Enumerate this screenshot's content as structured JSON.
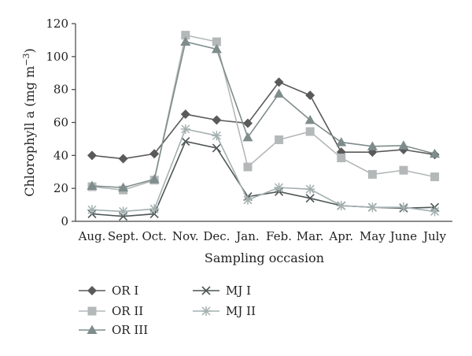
{
  "chart_data": {
    "type": "line",
    "title": "",
    "xlabel": "Sampling occasion",
    "ylabel": "Chlorophyll a (mg m",
    "ylabel_sup": "−3",
    "ylabel_close": ")",
    "categories": [
      "Aug.",
      "Sept.",
      "Oct.",
      "Nov.",
      "Dec.",
      "Jan.",
      "Feb.",
      "Mar.",
      "Apr.",
      "May",
      "June",
      "July"
    ],
    "ylim": [
      0,
      120
    ],
    "yticks": [
      "0",
      "20",
      "40",
      "60",
      "80",
      "100",
      "120"
    ],
    "grid": false,
    "legend_position": "bottom-left",
    "series": [
      {
        "name": "OR I",
        "marker": "diamond",
        "color": "#5a5a5a",
        "values": [
          40,
          38,
          41,
          65,
          61.5,
          59.5,
          84.5,
          76.5,
          42,
          42,
          43.5,
          40.5
        ]
      },
      {
        "name": "OR II",
        "marker": "square",
        "color": "#b4b8b8",
        "values": [
          21,
          19,
          25,
          113,
          109,
          33,
          49.5,
          54.5,
          38.5,
          28.5,
          31,
          27
        ]
      },
      {
        "name": "OR III",
        "marker": "triangle",
        "color": "#7f8c8c",
        "values": [
          21.5,
          20.5,
          25.5,
          109,
          104.5,
          51,
          77.5,
          61.5,
          48,
          45.5,
          46,
          41
        ]
      },
      {
        "name": "MJ I",
        "marker": "x",
        "color": "#4e5656",
        "values": [
          4.5,
          3,
          4.5,
          48.5,
          44.5,
          15,
          18,
          14,
          9.5,
          8.5,
          8,
          8.5
        ]
      },
      {
        "name": "MJ II",
        "marker": "asterisk",
        "color": "#a4b0b0",
        "values": [
          7,
          6,
          7.5,
          56,
          52,
          13,
          20.5,
          19.5,
          9.5,
          8.5,
          8.5,
          6
        ]
      }
    ]
  }
}
